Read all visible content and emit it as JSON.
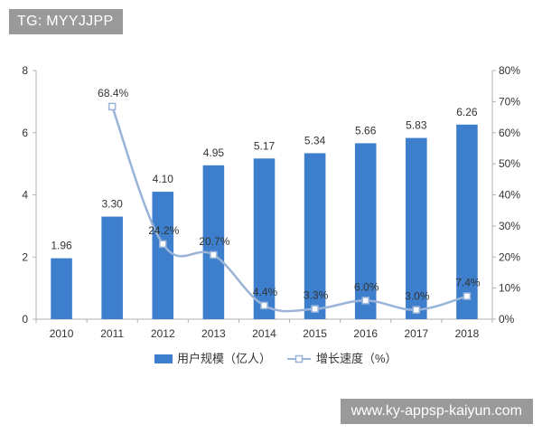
{
  "overlay": {
    "top_left_text": "TG: MYYJJPP",
    "bottom_right_text": "www.ky-appsp-kaiyun.com"
  },
  "chart_data": {
    "type": "bar",
    "categories": [
      "2010",
      "2011",
      "2012",
      "2013",
      "2014",
      "2015",
      "2016",
      "2017",
      "2018"
    ],
    "series": [
      {
        "name": "用户规模（亿人）",
        "type": "bar",
        "axis": "left",
        "color": "#3d7fcc",
        "values": [
          1.96,
          3.3,
          4.1,
          4.95,
          5.17,
          5.34,
          5.66,
          5.83,
          6.26
        ],
        "labels": [
          "1.96",
          "3.30",
          "4.10",
          "4.95",
          "5.17",
          "5.34",
          "5.66",
          "5.83",
          "6.26"
        ]
      },
      {
        "name": "增长速度（%）",
        "type": "line",
        "axis": "right",
        "color": "#9ab3d8",
        "values": [
          null,
          68.4,
          24.2,
          20.7,
          4.4,
          3.3,
          6.0,
          3.0,
          7.4
        ],
        "labels": [
          "",
          "68.4%",
          "24.2%",
          "20.7%",
          "4.4%",
          "3.3%",
          "6.0%",
          "3.0%",
          "7.4%"
        ]
      }
    ],
    "y_left": {
      "min": 0,
      "max": 8,
      "ticks": [
        "0",
        "2",
        "4",
        "6",
        "8"
      ]
    },
    "y_right": {
      "min": 0,
      "max": 80,
      "ticks": [
        "0%",
        "10%",
        "20%",
        "30%",
        "40%",
        "50%",
        "60%",
        "70%",
        "80%"
      ]
    },
    "legend_position": "bottom",
    "grid": false
  }
}
